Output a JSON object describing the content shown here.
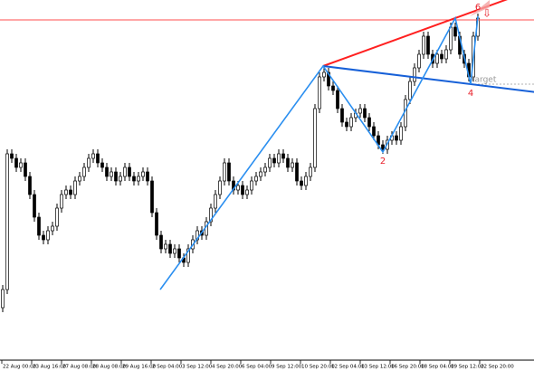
{
  "chart_data": {
    "type": "candlestick",
    "up_color": "#ffffff",
    "down_color": "#000000",
    "outline_color": "#000000",
    "xlim": [
      -0.6,
      117.4
    ],
    "ylim": [
      2,
      400
    ],
    "xticks": [
      {
        "value": -0.2,
        "label": "22 Aug 00:00"
      },
      {
        "value": 6.4,
        "label": "23 Aug 16:00"
      },
      {
        "value": 13,
        "label": "27 Aug 08:00"
      },
      {
        "value": 19.6,
        "label": "28 Aug 08:00"
      },
      {
        "value": 26.2,
        "label": "29 Aug 16:00"
      },
      {
        "value": 32.8,
        "label": "2 Sep 04:00"
      },
      {
        "value": 39.4,
        "label": "3 Sep 12:00"
      },
      {
        "value": 46,
        "label": "4 Sep 20:00"
      },
      {
        "value": 52.6,
        "label": "6 Sep 04:00"
      },
      {
        "value": 59.2,
        "label": "9 Sep 12:00"
      },
      {
        "value": 65.8,
        "label": "10 Sep 20:00"
      },
      {
        "value": 72.4,
        "label": "12 Sep 04:00"
      },
      {
        "value": 79,
        "label": "13 Sep 12:00"
      },
      {
        "value": 85.6,
        "label": "16 Sep 20:00"
      },
      {
        "value": 92.2,
        "label": "18 Sep 04:00"
      },
      {
        "value": 98.8,
        "label": "19 Sep 12:00"
      },
      {
        "value": 105.4,
        "label": "22 Sep 20:00"
      }
    ],
    "open": [
      60,
      80,
      230,
      225,
      215,
      220,
      205,
      185,
      160,
      140,
      135,
      145,
      150,
      170,
      185,
      190,
      185,
      200,
      205,
      215,
      225,
      230,
      220,
      215,
      205,
      210,
      200,
      205,
      215,
      205,
      200,
      205,
      210,
      200,
      165,
      140,
      125,
      130,
      120,
      125,
      115,
      110,
      125,
      135,
      145,
      140,
      155,
      170,
      185,
      200,
      220,
      200,
      190,
      195,
      185,
      190,
      200,
      205,
      210,
      215,
      225,
      220,
      230,
      225,
      215,
      220,
      200,
      195,
      205,
      215,
      280,
      315,
      320,
      305,
      300,
      280,
      265,
      260,
      270,
      275,
      280,
      270,
      260,
      250,
      240,
      235,
      245,
      250,
      245,
      260,
      290,
      310,
      325,
      340,
      360,
      340,
      330,
      340,
      335,
      345,
      370,
      360,
      340,
      330,
      315,
      360
    ],
    "high": [
      85,
      235,
      235,
      230,
      225,
      225,
      210,
      190,
      165,
      145,
      150,
      155,
      175,
      190,
      195,
      195,
      205,
      210,
      220,
      230,
      235,
      235,
      225,
      220,
      215,
      215,
      210,
      220,
      220,
      210,
      210,
      215,
      215,
      205,
      170,
      145,
      135,
      135,
      130,
      130,
      120,
      130,
      140,
      150,
      150,
      160,
      175,
      190,
      205,
      225,
      225,
      205,
      200,
      200,
      195,
      205,
      210,
      215,
      220,
      230,
      230,
      235,
      235,
      230,
      225,
      225,
      205,
      210,
      220,
      285,
      320,
      325,
      325,
      310,
      305,
      285,
      270,
      275,
      280,
      285,
      285,
      275,
      265,
      255,
      245,
      250,
      255,
      255,
      265,
      295,
      315,
      330,
      345,
      365,
      365,
      345,
      345,
      345,
      350,
      375,
      375,
      365,
      345,
      335,
      365,
      385
    ],
    "low": [
      55,
      75,
      220,
      210,
      210,
      200,
      180,
      155,
      135,
      130,
      130,
      140,
      145,
      165,
      180,
      180,
      180,
      195,
      200,
      210,
      220,
      215,
      210,
      200,
      200,
      195,
      195,
      200,
      200,
      195,
      195,
      200,
      195,
      160,
      135,
      120,
      120,
      115,
      115,
      110,
      105,
      105,
      120,
      130,
      135,
      135,
      150,
      165,
      180,
      195,
      195,
      185,
      185,
      180,
      180,
      185,
      195,
      200,
      205,
      210,
      215,
      215,
      220,
      210,
      210,
      195,
      190,
      190,
      200,
      210,
      275,
      310,
      300,
      295,
      275,
      260,
      255,
      255,
      265,
      270,
      265,
      255,
      245,
      235,
      230,
      230,
      240,
      240,
      240,
      255,
      285,
      305,
      320,
      335,
      335,
      325,
      325,
      330,
      330,
      340,
      355,
      335,
      325,
      310,
      310,
      355
    ],
    "close": [
      80,
      230,
      225,
      215,
      220,
      205,
      185,
      160,
      140,
      135,
      145,
      150,
      170,
      185,
      190,
      185,
      200,
      205,
      215,
      225,
      230,
      220,
      215,
      205,
      210,
      200,
      205,
      215,
      205,
      200,
      205,
      210,
      200,
      165,
      140,
      125,
      130,
      120,
      125,
      115,
      110,
      125,
      135,
      145,
      140,
      155,
      170,
      185,
      200,
      220,
      200,
      190,
      195,
      185,
      190,
      200,
      205,
      210,
      215,
      225,
      220,
      230,
      225,
      215,
      220,
      200,
      195,
      205,
      215,
      280,
      315,
      320,
      305,
      300,
      280,
      265,
      260,
      270,
      275,
      280,
      270,
      260,
      250,
      240,
      235,
      245,
      250,
      245,
      260,
      290,
      310,
      325,
      340,
      360,
      340,
      330,
      340,
      335,
      345,
      370,
      360,
      340,
      330,
      315,
      360,
      380
    ],
    "hline": {
      "value": 378,
      "color": "#ff4d4d"
    },
    "zigzag": {
      "color": "#2b8ff0",
      "x": [
        34.8,
        70.8,
        84,
        100,
        103.4,
        105
      ],
      "y": [
        80,
        327,
        232,
        380,
        307,
        382
      ],
      "point_labels": [
        null,
        null,
        "2",
        null,
        "4",
        "6"
      ],
      "label_color": "#e8202a"
    },
    "trendlines": [
      {
        "color": "#ff2020",
        "x": [
          70.8,
          100
        ],
        "y": [
          327,
          380
        ]
      },
      {
        "color": "#1660d8",
        "x": [
          70.8,
          103.4
        ],
        "y": [
          327,
          307
        ]
      }
    ],
    "target": {
      "value": 307,
      "x": 103.4,
      "label": "target",
      "color": "#999999"
    }
  }
}
